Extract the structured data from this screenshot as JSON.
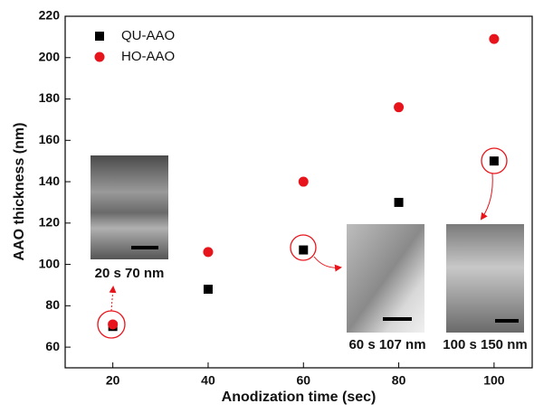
{
  "chart_data": {
    "type": "scatter",
    "x_label": "Anodization time (sec)",
    "y_label": "AAO thickness (nm)",
    "x": [
      20,
      40,
      60,
      80,
      100
    ],
    "series": [
      {
        "name": "QU-AAO",
        "color": "#000000",
        "marker": "square",
        "values": [
          70,
          88,
          107,
          130,
          150
        ]
      },
      {
        "name": "HO-AAO",
        "color": "#e8141b",
        "marker": "circle",
        "values": [
          71,
          106,
          140,
          176,
          209
        ]
      }
    ],
    "xlim": [
      10,
      108
    ],
    "xticks": [
      20,
      40,
      60,
      80,
      100
    ],
    "ylim": [
      50,
      220
    ],
    "yticks": [
      60,
      80,
      100,
      120,
      140,
      160,
      180,
      200,
      220
    ],
    "legend": "top-left",
    "annotations": [
      "20 s 70 nm",
      "60 s 107 nm",
      "100 s 150 nm"
    ]
  }
}
